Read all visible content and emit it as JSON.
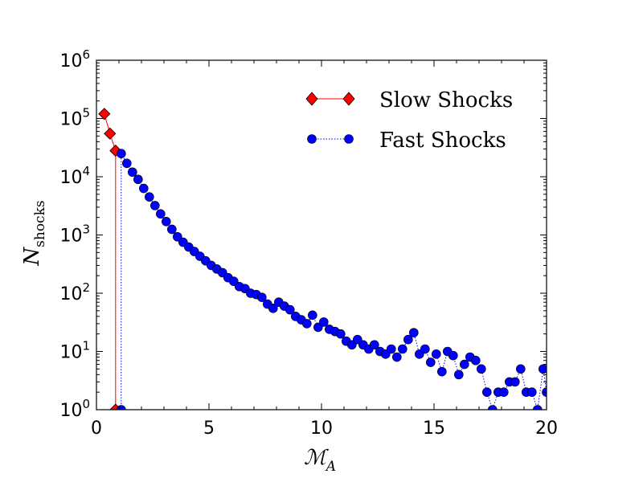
{
  "chart_data": {
    "type": "line",
    "title": "",
    "xlabel_main": "ℳ",
    "xlabel_sub": "A",
    "ylabel_main": "N",
    "ylabel_sub": "shocks",
    "xlim": [
      0,
      20
    ],
    "ylim_log10": [
      0,
      6
    ],
    "yscale": "log",
    "x_ticks": [
      0,
      5,
      10,
      15,
      20
    ],
    "x_tick_labels": [
      "0",
      "5",
      "10",
      "15",
      "20"
    ],
    "y_ticks": [
      0,
      1,
      2,
      3,
      4,
      5,
      6
    ],
    "y_tick_base": "10",
    "y_tick_exponents": [
      "0",
      "1",
      "2",
      "3",
      "4",
      "5",
      "6"
    ],
    "legend_position": "top-right",
    "series": [
      {
        "name": "Slow Shocks",
        "color": "#ff0000",
        "marker": "diamond",
        "linestyle": "solid",
        "x": [
          0.35,
          0.6,
          0.85,
          0.85
        ],
        "y": [
          120000,
          55000,
          28000,
          1
        ]
      },
      {
        "name": "Fast Shocks",
        "color": "#0000ff",
        "marker": "circle",
        "linestyle": "dotted",
        "x": [
          1.1,
          1.1,
          1.35,
          1.6,
          1.85,
          2.1,
          2.35,
          2.6,
          2.85,
          3.1,
          3.35,
          3.6,
          3.85,
          4.1,
          4.35,
          4.6,
          4.85,
          5.1,
          5.35,
          5.6,
          5.85,
          6.1,
          6.35,
          6.6,
          6.85,
          7.1,
          7.35,
          7.6,
          7.85,
          8.1,
          8.35,
          8.6,
          8.85,
          9.1,
          9.35,
          9.6,
          9.85,
          10.1,
          10.35,
          10.6,
          10.85,
          11.1,
          11.35,
          11.6,
          11.85,
          12.1,
          12.35,
          12.6,
          12.85,
          13.1,
          13.35,
          13.6,
          13.85,
          14.1,
          14.35,
          14.6,
          14.85,
          15.1,
          15.35,
          15.6,
          15.85,
          16.1,
          16.35,
          16.6,
          16.85,
          17.1,
          17.35,
          17.6,
          17.85,
          18.1,
          18.35,
          18.6,
          18.85,
          19.1,
          19.35,
          19.6,
          19.85,
          20.0
        ],
        "y": [
          1,
          25000,
          17000,
          12000,
          9000,
          6300,
          4500,
          3200,
          2300,
          1700,
          1250,
          930,
          750,
          620,
          520,
          430,
          360,
          300,
          260,
          225,
          185,
          160,
          130,
          120,
          100,
          95,
          85,
          65,
          55,
          70,
          60,
          52,
          40,
          35,
          30,
          42,
          26,
          32,
          24,
          22,
          20,
          15,
          13,
          16,
          13,
          11,
          13,
          10,
          9,
          11,
          8,
          11,
          16,
          21,
          9,
          11,
          6.5,
          9,
          4.5,
          10,
          8.5,
          4,
          6,
          8,
          7,
          5,
          2,
          1,
          2,
          2,
          3,
          3,
          5,
          2,
          2,
          1,
          5,
          2
        ]
      }
    ],
    "legend": {
      "slow_label": "Slow Shocks",
      "fast_label": "Fast Shocks"
    }
  }
}
